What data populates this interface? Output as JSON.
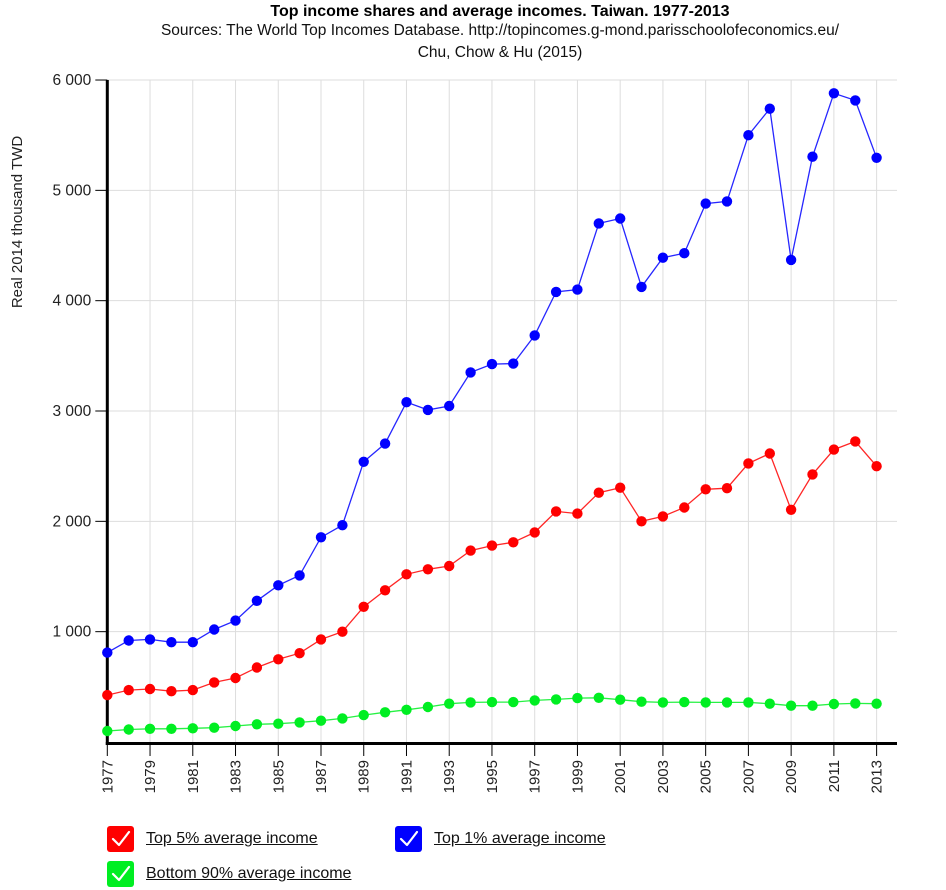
{
  "chart_data": {
    "type": "line",
    "title": "Top income shares and average incomes. Taiwan. 1977-2013",
    "subtitle_line1": "Sources: The World Top Incomes Database. http://topincomes.g-mond.parisschoolofeconomics.eu/",
    "subtitle_line2": "Chu, Chow & Hu (2015)",
    "xlabel": "",
    "ylabel": "Real 2014 thousand TWD",
    "xlim": [
      1977,
      2014
    ],
    "ylim": [
      0,
      6000
    ],
    "grid": true,
    "legend_position": "bottom-left",
    "y_ticks": [
      {
        "value": 1000,
        "label": "1 000"
      },
      {
        "value": 2000,
        "label": "2 000"
      },
      {
        "value": 3000,
        "label": "3 000"
      },
      {
        "value": 4000,
        "label": "4 000"
      },
      {
        "value": 5000,
        "label": "5 000"
      },
      {
        "value": 6000,
        "label": "6 000"
      }
    ],
    "x_ticks": [
      "1977",
      "1979",
      "1981",
      "1983",
      "1985",
      "1987",
      "1989",
      "1991",
      "1993",
      "1995",
      "1997",
      "1999",
      "2001",
      "2003",
      "2005",
      "2007",
      "2009",
      "2011",
      "2013"
    ],
    "x": [
      1977,
      1978,
      1979,
      1980,
      1981,
      1982,
      1983,
      1984,
      1985,
      1986,
      1987,
      1988,
      1989,
      1990,
      1991,
      1992,
      1993,
      1994,
      1995,
      1996,
      1997,
      1998,
      1999,
      2000,
      2001,
      2002,
      2003,
      2004,
      2005,
      2006,
      2007,
      2008,
      2009,
      2010,
      2011,
      2012,
      2013
    ],
    "series": [
      {
        "name": "Top 5% average income",
        "color": "#ff0000",
        "values": [
          425,
          470,
          480,
          460,
          470,
          540,
          580,
          675,
          750,
          805,
          930,
          1000,
          1225,
          1375,
          1520,
          1565,
          1595,
          1735,
          1780,
          1810,
          1900,
          2090,
          2070,
          2260,
          2305,
          2000,
          2045,
          2125,
          2290,
          2300,
          2525,
          2615,
          2105,
          2425,
          2650,
          2725,
          2500
        ]
      },
      {
        "name": "Top 1% average income",
        "color": "#0000ff",
        "values": [
          810,
          920,
          930,
          905,
          905,
          1020,
          1100,
          1280,
          1420,
          1510,
          1855,
          1965,
          2540,
          2705,
          3080,
          3010,
          3045,
          3350,
          3425,
          3430,
          3685,
          4080,
          4100,
          4700,
          4745,
          4125,
          4390,
          4430,
          4880,
          4900,
          5500,
          5740,
          4370,
          5305,
          5880,
          5815,
          5295
        ]
      },
      {
        "name": "Bottom 90% average income",
        "color": "#00ee22",
        "values": [
          100,
          113,
          120,
          120,
          124,
          130,
          145,
          160,
          166,
          178,
          193,
          214,
          244,
          269,
          292,
          317,
          347,
          359,
          362,
          362,
          377,
          386,
          398,
          401,
          383,
          365,
          359,
          362,
          359,
          359,
          359,
          347,
          329,
          329,
          344,
          350,
          347
        ]
      }
    ]
  },
  "legend": {
    "items": [
      {
        "label": "Top 5% average income",
        "color": "#ff0000",
        "checked": true
      },
      {
        "label": "Top 1% average income",
        "color": "#0000ff",
        "checked": true
      },
      {
        "label": "Bottom 90% average income",
        "color": "#00ee22",
        "checked": true
      }
    ]
  }
}
